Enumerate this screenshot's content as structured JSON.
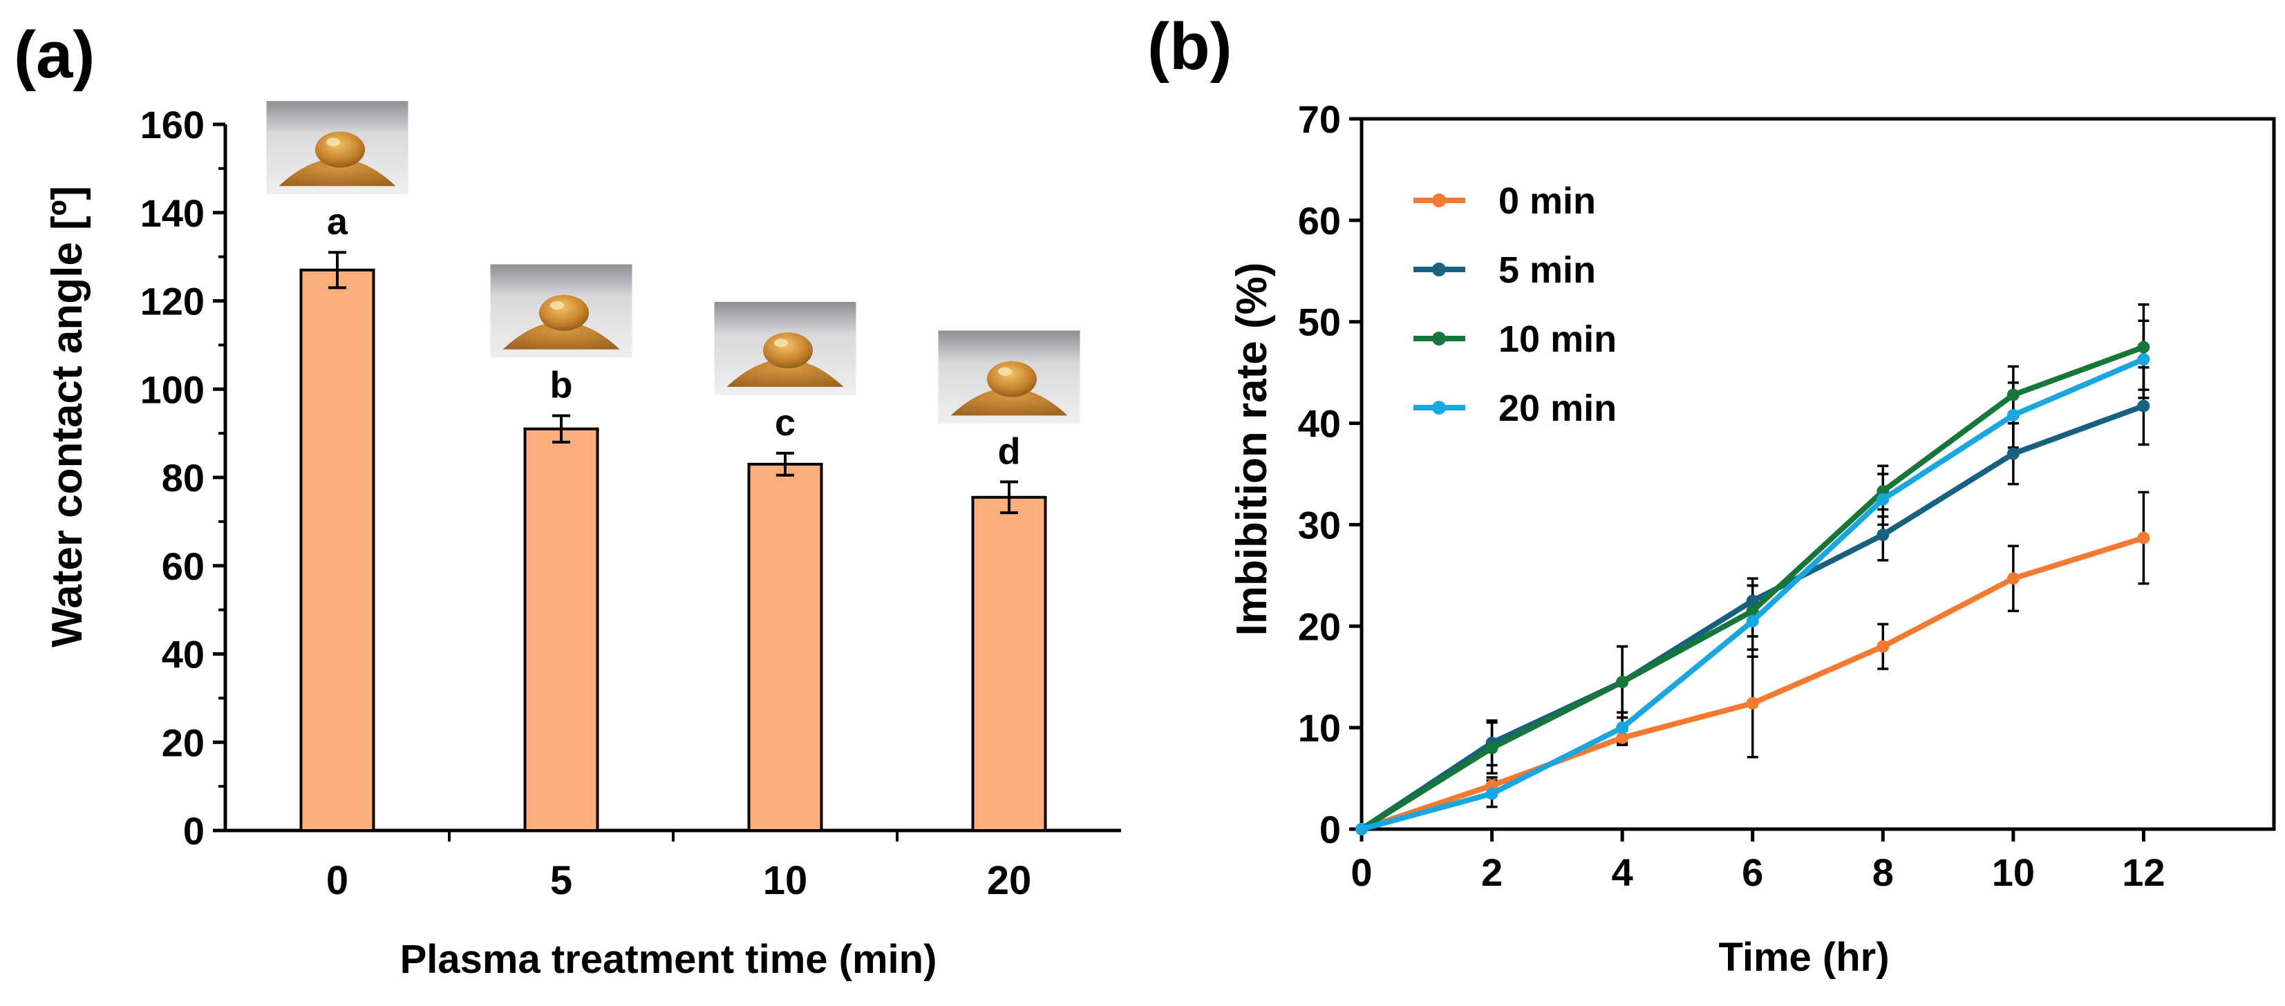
{
  "chart_data": [
    {
      "panel_label": "(a)",
      "type": "bar",
      "categories": [
        "0",
        "5",
        "10",
        "20"
      ],
      "values": [
        127,
        91,
        83,
        75.5
      ],
      "errors": [
        4,
        3,
        2.5,
        3.5
      ],
      "significance_letters": [
        "a",
        "b",
        "c",
        "d"
      ],
      "title": "",
      "xlabel": "Plasma treatment time (min)",
      "ylabel": "Water contact angle [º]",
      "ylim": [
        0,
        160
      ],
      "yticks": [
        "0",
        "20",
        "40",
        "60",
        "80",
        "100",
        "120",
        "140",
        "160"
      ],
      "grid": false,
      "colors": {
        "bar_fill": "#FDAE7F",
        "bar_stroke": "#000000"
      },
      "inset_images": [
        "droplet-photo",
        "droplet-photo",
        "droplet-photo",
        "droplet-photo"
      ]
    },
    {
      "panel_label": "(b)",
      "type": "line",
      "x": [
        0,
        2,
        4,
        6,
        8,
        10,
        12
      ],
      "series": [
        {
          "name": "0 min",
          "color": "#F47A32",
          "values": [
            0,
            4.3,
            9,
            12.4,
            18,
            24.7,
            28.7
          ],
          "errors": [
            0,
            0.8,
            0.7,
            5.3,
            2.2,
            3.2,
            4.5
          ]
        },
        {
          "name": "5 min",
          "color": "#17617F",
          "values": [
            0,
            8.5,
            14.5,
            22.5,
            29,
            37,
            41.7
          ],
          "errors": [
            0,
            2.2,
            3.5,
            2.2,
            2.5,
            3,
            3.8
          ]
        },
        {
          "name": "10 min",
          "color": "#17773A",
          "values": [
            0,
            8,
            14.5,
            21.5,
            33.3,
            42.8,
            47.5
          ],
          "errors": [
            0,
            2.5,
            3.5,
            2.5,
            2.5,
            2.8,
            4.2
          ]
        },
        {
          "name": "20 min",
          "color": "#1AA7DF",
          "values": [
            0,
            3.5,
            10,
            20.5,
            32.5,
            40.8,
            46.3
          ],
          "errors": [
            0,
            1.3,
            1.5,
            3.5,
            2.5,
            3.2,
            3.8
          ]
        }
      ],
      "title": "",
      "xlabel": "Time (hr)",
      "ylabel": "Imbibition rate (%)",
      "xlim": [
        0,
        14
      ],
      "ylim": [
        0,
        70
      ],
      "xticks": [
        "0",
        "2",
        "4",
        "6",
        "8",
        "10",
        "12"
      ],
      "yticks": [
        "0",
        "10",
        "20",
        "30",
        "40",
        "50",
        "60",
        "70"
      ],
      "grid": false,
      "legend": "top-left"
    }
  ]
}
